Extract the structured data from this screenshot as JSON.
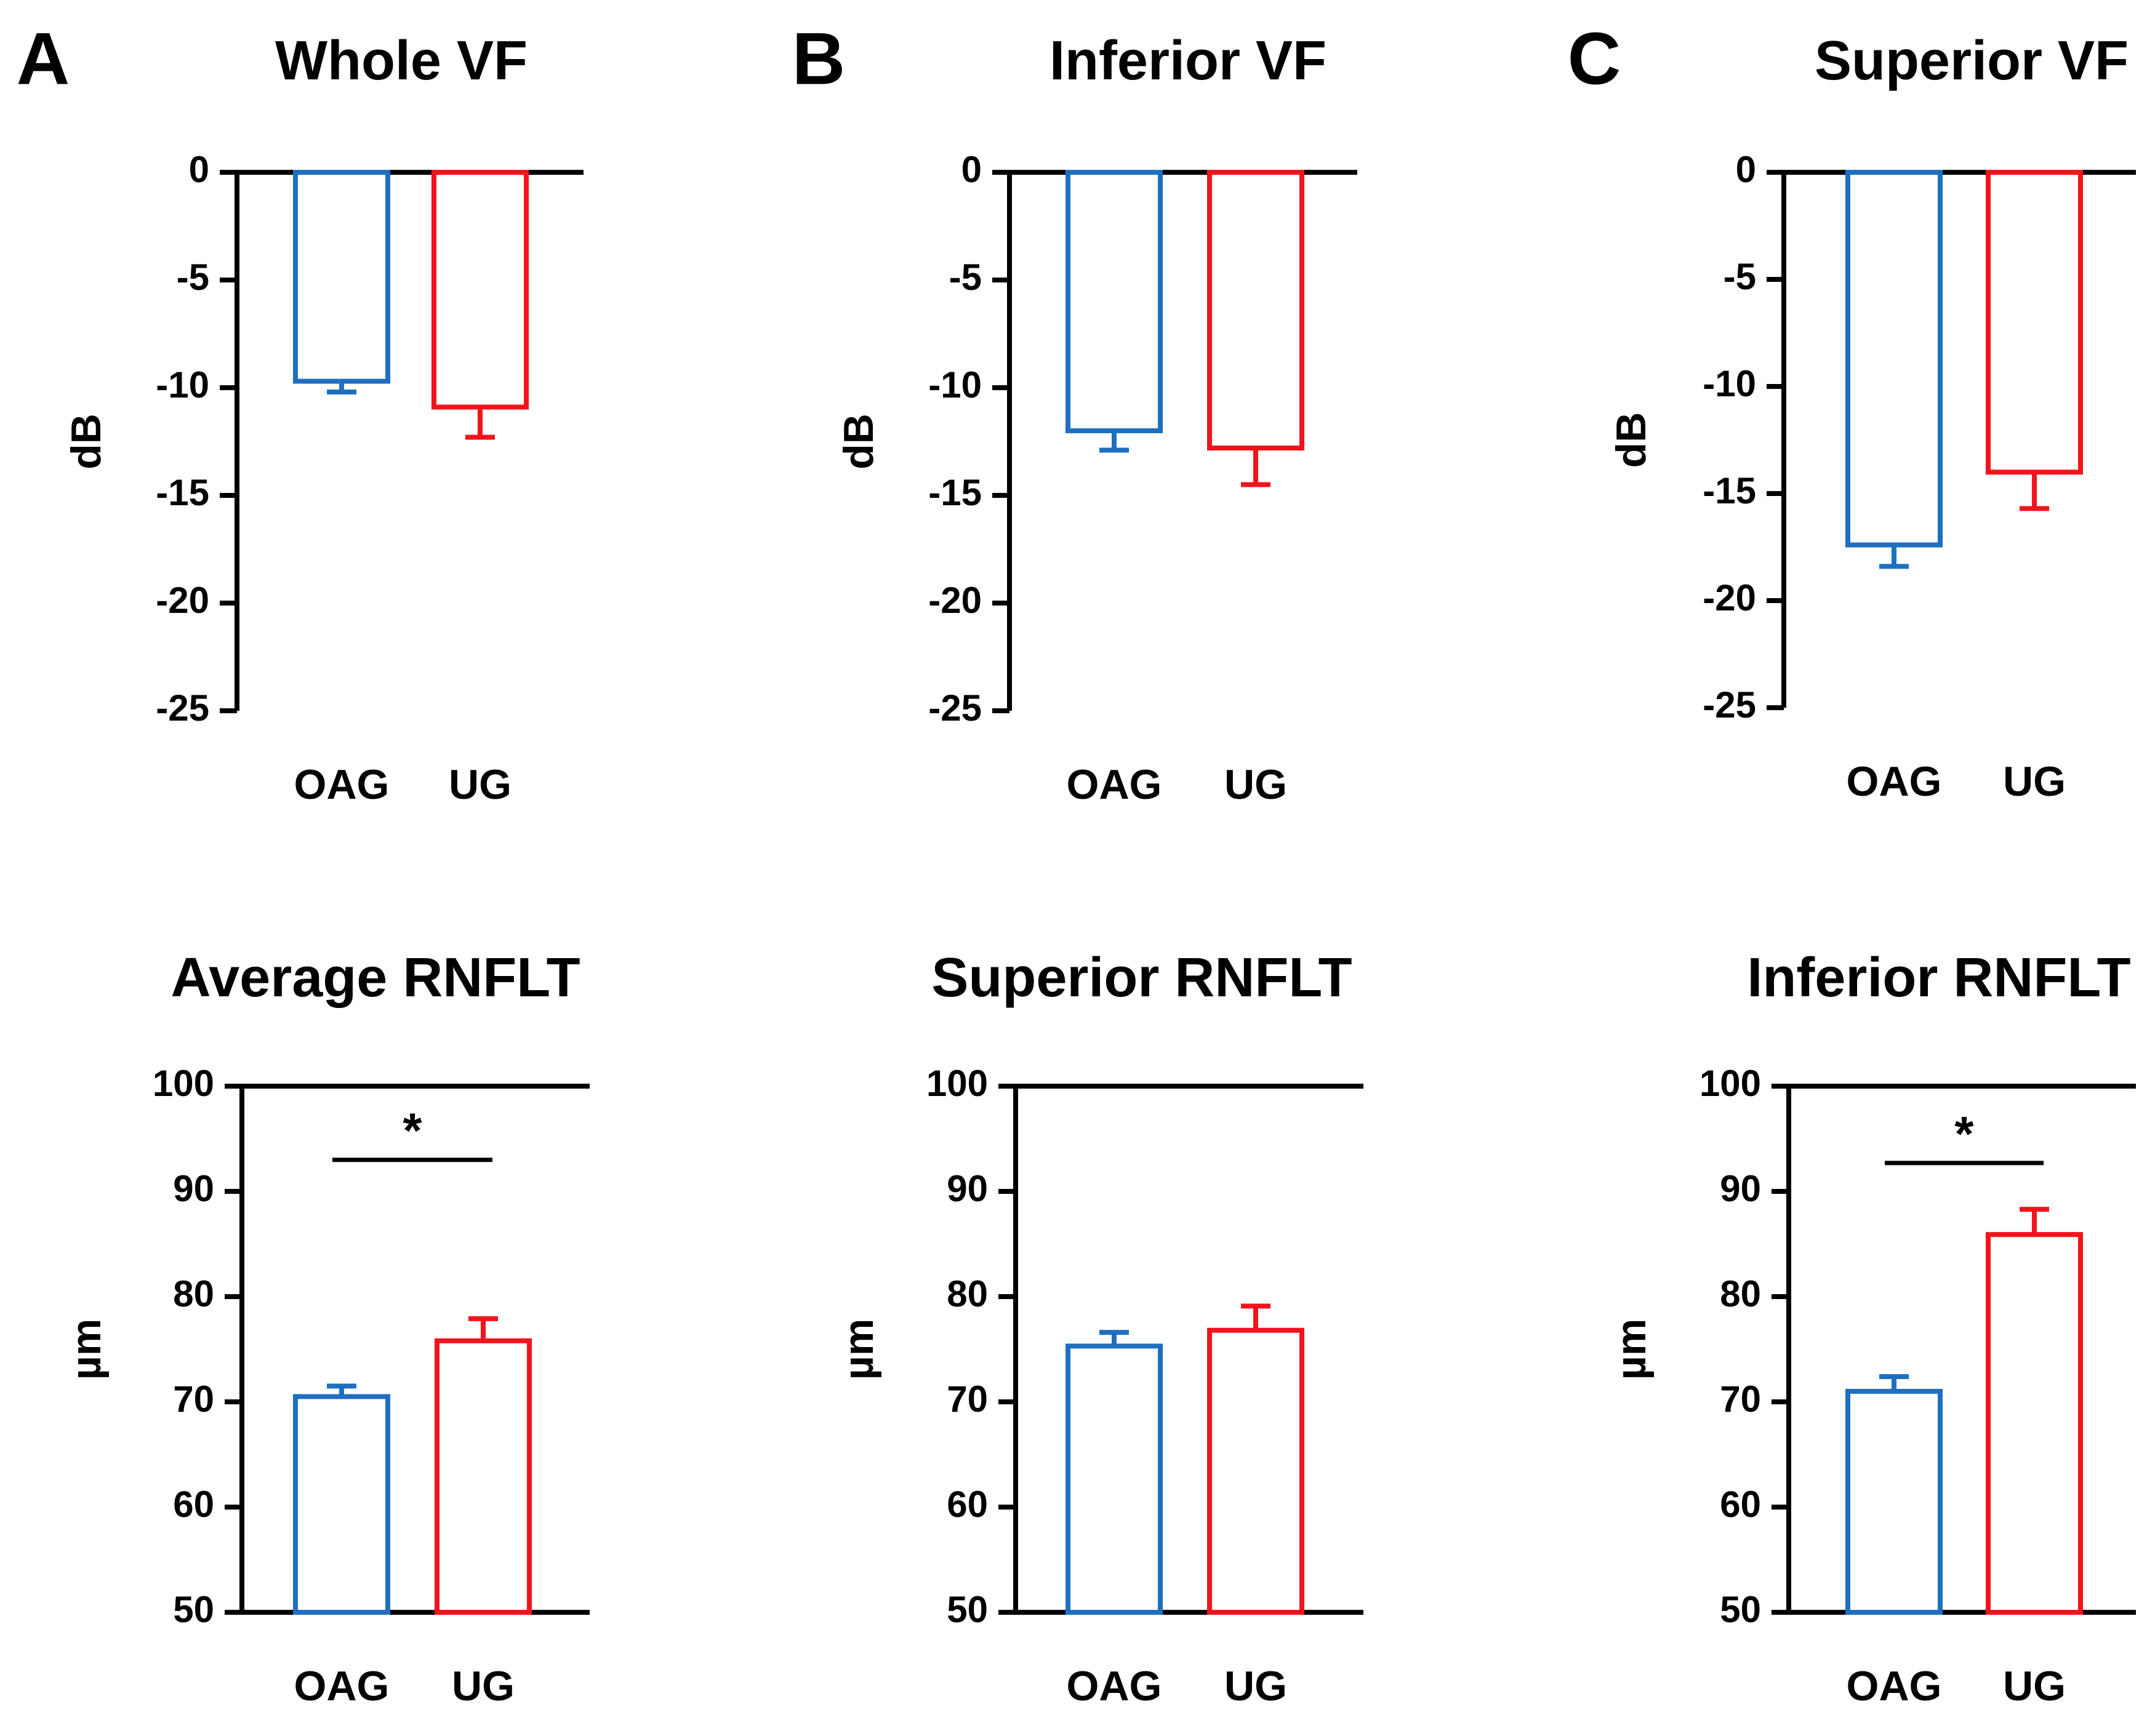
{
  "colors": {
    "oag": "#1f6fc0",
    "ug": "#f2141c",
    "axis": "#000000"
  },
  "chart_data": [
    {
      "type": "bar",
      "panel_label": "A",
      "title": "Whole VF",
      "ylabel": "dB",
      "ylim": [
        -25,
        0
      ],
      "yticks": [
        0,
        -5,
        -10,
        -15,
        -20,
        -25
      ],
      "categories": [
        "OAG",
        "UG"
      ],
      "values": [
        -9.7,
        -10.9
      ],
      "errors": [
        0.5,
        1.4
      ],
      "significance": null
    },
    {
      "type": "bar",
      "panel_label": "B",
      "title": "Inferior VF",
      "ylabel": "dB",
      "ylim": [
        -25,
        0
      ],
      "yticks": [
        0,
        -5,
        -10,
        -15,
        -20,
        -25
      ],
      "categories": [
        "OAG",
        "UG"
      ],
      "values": [
        -12.0,
        -12.8
      ],
      "errors": [
        0.9,
        1.7
      ],
      "significance": null
    },
    {
      "type": "bar",
      "panel_label": "C",
      "title": "Superior VF",
      "ylabel": "dB",
      "ylim": [
        -25,
        0
      ],
      "yticks": [
        0,
        -5,
        -10,
        -15,
        -20,
        -25
      ],
      "categories": [
        "OAG",
        "UG"
      ],
      "values": [
        -17.4,
        -14.0
      ],
      "errors": [
        1.0,
        1.7
      ],
      "significance": null
    },
    {
      "type": "bar",
      "panel_label": "",
      "title": "Average RNFLT",
      "ylabel": "µm",
      "ylim": [
        50,
        100
      ],
      "yticks": [
        100,
        90,
        80,
        70,
        60,
        50
      ],
      "categories": [
        "OAG",
        "UG"
      ],
      "values": [
        70.5,
        75.8
      ],
      "errors": [
        1.0,
        2.1
      ],
      "significance": {
        "label": "*",
        "level": 93
      }
    },
    {
      "type": "bar",
      "panel_label": "",
      "title": "Superior RNFLT",
      "ylabel": "µm",
      "ylim": [
        50,
        100
      ],
      "yticks": [
        100,
        90,
        80,
        70,
        60,
        50
      ],
      "categories": [
        "OAG",
        "UG"
      ],
      "values": [
        75.3,
        76.8
      ],
      "errors": [
        1.3,
        2.3
      ],
      "significance": null
    },
    {
      "type": "bar",
      "panel_label": "",
      "title": "Inferior RNFLT",
      "ylabel": "µm",
      "ylim": [
        50,
        100
      ],
      "yticks": [
        100,
        90,
        80,
        70,
        60,
        50
      ],
      "categories": [
        "OAG",
        "UG"
      ],
      "values": [
        71.0,
        85.9
      ],
      "errors": [
        1.4,
        2.4
      ],
      "significance": {
        "label": "*",
        "level": 92.7
      }
    }
  ]
}
